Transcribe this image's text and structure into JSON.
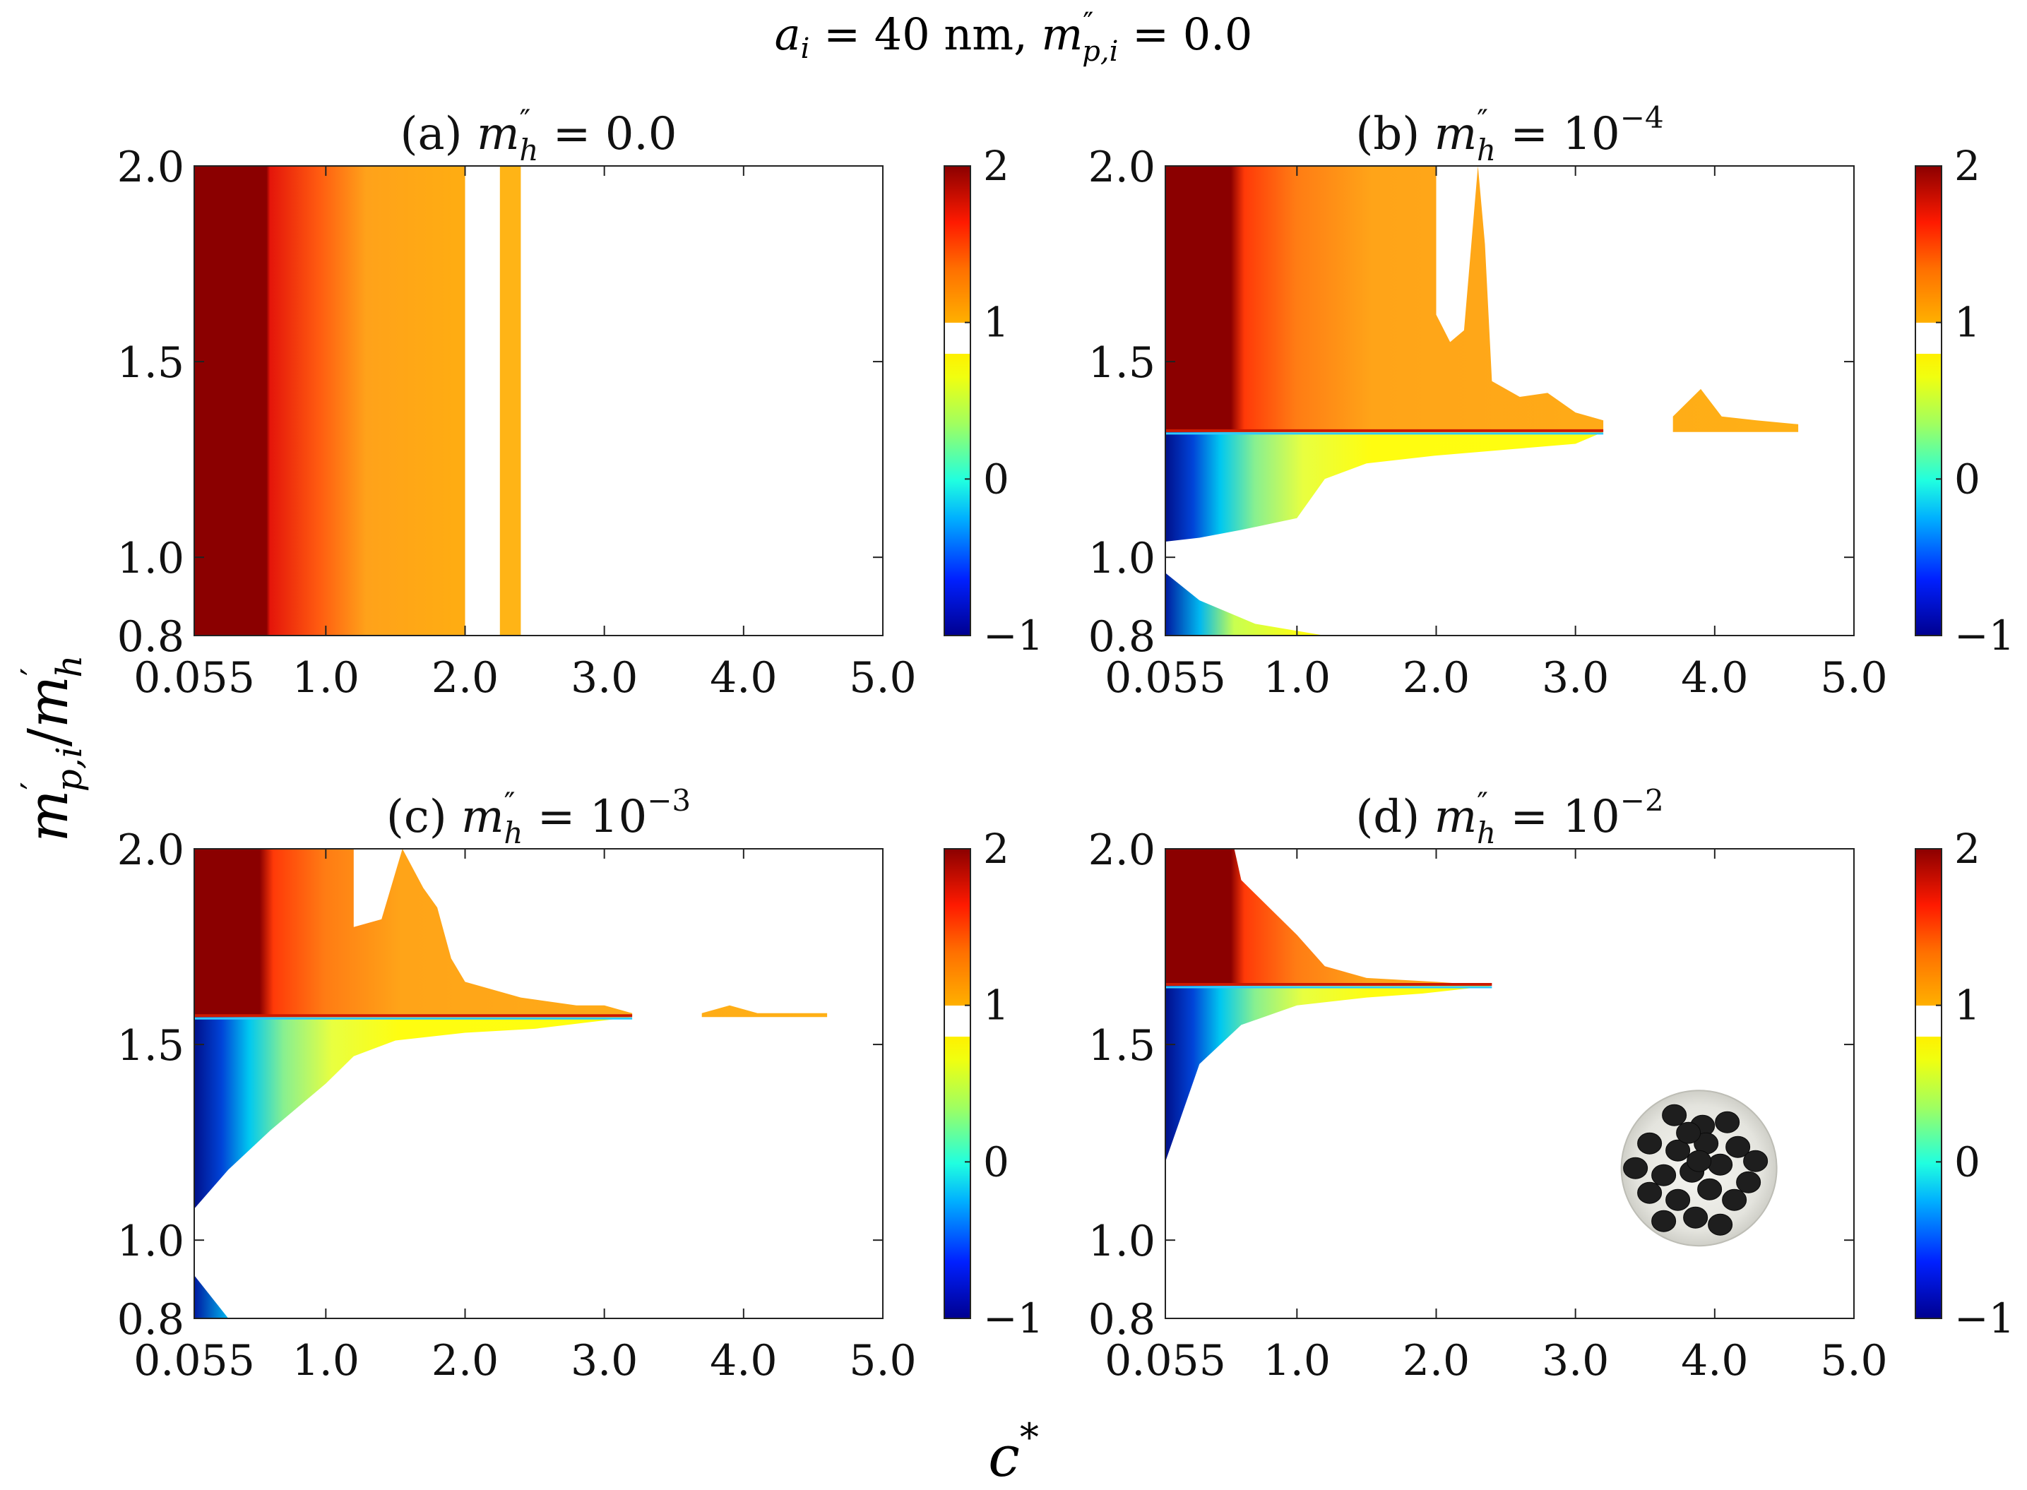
{
  "figure": {
    "suptitle": {
      "a": "a",
      "a_sub": "i",
      "a_rest": " = 40 nm, ",
      "m": "m",
      "m_sup": "″",
      "m_sub": "p,i",
      "m_rest": " = 0.0"
    },
    "xlabel": {
      "c": "c",
      "sup": "*"
    },
    "ylabel": {
      "m1": "m",
      "sup1": "′",
      "sub1": "p,i",
      "slash": "/",
      "m2": "m",
      "sup2": "′",
      "sub2": "h"
    }
  },
  "chart_data": [
    {
      "id": "a",
      "type": "heatmap",
      "title": {
        "prefix": "(a)",
        "m": "m",
        "m_sup": "″",
        "m_sub": "h",
        "eq": "=",
        "value": "0.0",
        "exp": ""
      },
      "xlim": [
        0.055,
        5.0
      ],
      "ylim": [
        0.8,
        2.0
      ],
      "xticks": [
        {
          "v": 0.055,
          "label": "0.055"
        },
        {
          "v": 1.0,
          "label": "1.0"
        },
        {
          "v": 2.0,
          "label": "2.0"
        },
        {
          "v": 3.0,
          "label": "3.0"
        },
        {
          "v": 4.0,
          "label": "4.0"
        },
        {
          "v": 5.0,
          "label": "5.0"
        }
      ],
      "yticks": [
        {
          "v": 0.8,
          "label": "0.8"
        },
        {
          "v": 1.0,
          "label": "1.0"
        },
        {
          "v": 1.5,
          "label": "1.5"
        },
        {
          "v": 2.0,
          "label": "2.0"
        }
      ],
      "colorbar": {
        "range": [
          -1,
          2
        ],
        "gap": [
          0.9,
          1.0
        ],
        "ticks": [
          {
            "v": 2,
            "label": "2"
          },
          {
            "v": 1,
            "label": "1"
          },
          {
            "v": 0,
            "label": "0"
          },
          {
            "v": -1,
            "label": "−1"
          }
        ]
      },
      "threshold": null,
      "upper": [
        [
          0.055,
          2.0
        ],
        [
          2.0,
          2.0
        ],
        [
          2.0,
          0.8
        ],
        [
          0.055,
          0.8
        ]
      ],
      "upper_extra": [
        [
          2.25,
          2.0
        ],
        [
          2.4,
          2.0
        ],
        [
          2.4,
          0.8
        ],
        [
          2.25,
          0.8
        ]
      ],
      "lower": [],
      "lower_extra": [],
      "inset_image": false
    },
    {
      "id": "b",
      "type": "heatmap",
      "title": {
        "prefix": "(b)",
        "m": "m",
        "m_sup": "″",
        "m_sub": "h",
        "eq": "=",
        "value": "10",
        "exp": "−4"
      },
      "xlim": [
        0.055,
        5.0
      ],
      "ylim": [
        0.8,
        2.0
      ],
      "xticks": [
        {
          "v": 0.055,
          "label": "0.055"
        },
        {
          "v": 1.0,
          "label": "1.0"
        },
        {
          "v": 2.0,
          "label": "2.0"
        },
        {
          "v": 3.0,
          "label": "3.0"
        },
        {
          "v": 4.0,
          "label": "4.0"
        },
        {
          "v": 5.0,
          "label": "5.0"
        }
      ],
      "yticks": [
        {
          "v": 0.8,
          "label": "0.8"
        },
        {
          "v": 1.0,
          "label": "1.0"
        },
        {
          "v": 1.5,
          "label": "1.5"
        },
        {
          "v": 2.0,
          "label": "2.0"
        }
      ],
      "colorbar": {
        "range": [
          -1,
          2
        ],
        "gap": [
          0.9,
          1.0
        ],
        "ticks": [
          {
            "v": 2,
            "label": "2"
          },
          {
            "v": 1,
            "label": "1"
          },
          {
            "v": 0,
            "label": "0"
          },
          {
            "v": -1,
            "label": "−1"
          }
        ]
      },
      "threshold": 1.32,
      "upper": [
        [
          0.055,
          2.0
        ],
        [
          2.0,
          2.0
        ],
        [
          2.0,
          1.62
        ],
        [
          2.1,
          1.55
        ],
        [
          2.2,
          1.58
        ],
        [
          2.3,
          2.0
        ],
        [
          2.35,
          1.8
        ],
        [
          2.4,
          1.45
        ],
        [
          2.6,
          1.41
        ],
        [
          2.8,
          1.42
        ],
        [
          3.0,
          1.37
        ],
        [
          3.2,
          1.35
        ],
        [
          3.2,
          1.32
        ],
        [
          0.055,
          1.32
        ]
      ],
      "upper_extra": [
        [
          3.7,
          1.36
        ],
        [
          3.9,
          1.43
        ],
        [
          4.05,
          1.36
        ],
        [
          4.3,
          1.35
        ],
        [
          4.6,
          1.34
        ],
        [
          4.6,
          1.32
        ],
        [
          3.7,
          1.32
        ]
      ],
      "lower": [
        [
          0.055,
          1.32
        ],
        [
          3.2,
          1.32
        ],
        [
          3.0,
          1.29
        ],
        [
          2.0,
          1.26
        ],
        [
          1.5,
          1.24
        ],
        [
          1.2,
          1.2
        ],
        [
          1.0,
          1.1
        ],
        [
          0.6,
          1.07
        ],
        [
          0.3,
          1.05
        ],
        [
          0.055,
          1.04
        ]
      ],
      "lower_extra": [
        [
          0.055,
          0.96
        ],
        [
          0.3,
          0.89
        ],
        [
          0.7,
          0.83
        ],
        [
          1.2,
          0.8
        ],
        [
          0.055,
          0.8
        ]
      ],
      "inset_image": false
    },
    {
      "id": "c",
      "type": "heatmap",
      "title": {
        "prefix": "(c)",
        "m": "m",
        "m_sup": "″",
        "m_sub": "h",
        "eq": "=",
        "value": "10",
        "exp": "−3"
      },
      "xlim": [
        0.055,
        5.0
      ],
      "ylim": [
        0.8,
        2.0
      ],
      "xticks": [
        {
          "v": 0.055,
          "label": "0.055"
        },
        {
          "v": 1.0,
          "label": "1.0"
        },
        {
          "v": 2.0,
          "label": "2.0"
        },
        {
          "v": 3.0,
          "label": "3.0"
        },
        {
          "v": 4.0,
          "label": "4.0"
        },
        {
          "v": 5.0,
          "label": "5.0"
        }
      ],
      "yticks": [
        {
          "v": 0.8,
          "label": "0.8"
        },
        {
          "v": 1.0,
          "label": "1.0"
        },
        {
          "v": 1.5,
          "label": "1.5"
        },
        {
          "v": 2.0,
          "label": "2.0"
        }
      ],
      "colorbar": {
        "range": [
          -1,
          2
        ],
        "gap": [
          0.9,
          1.0
        ],
        "ticks": [
          {
            "v": 2,
            "label": "2"
          },
          {
            "v": 1,
            "label": "1"
          },
          {
            "v": 0,
            "label": "0"
          },
          {
            "v": -1,
            "label": "−1"
          }
        ]
      },
      "threshold": 1.57,
      "upper": [
        [
          0.055,
          2.0
        ],
        [
          1.2,
          2.0
        ],
        [
          1.2,
          1.8
        ],
        [
          1.4,
          1.82
        ],
        [
          1.55,
          2.0
        ],
        [
          1.7,
          1.9
        ],
        [
          1.8,
          1.85
        ],
        [
          1.9,
          1.72
        ],
        [
          2.0,
          1.66
        ],
        [
          2.4,
          1.62
        ],
        [
          2.8,
          1.6
        ],
        [
          3.0,
          1.6
        ],
        [
          3.2,
          1.58
        ],
        [
          3.2,
          1.57
        ],
        [
          0.055,
          1.57
        ]
      ],
      "upper_extra": [
        [
          3.7,
          1.58
        ],
        [
          3.9,
          1.6
        ],
        [
          4.1,
          1.58
        ],
        [
          4.6,
          1.58
        ],
        [
          4.6,
          1.57
        ],
        [
          3.7,
          1.57
        ]
      ],
      "lower": [
        [
          0.055,
          1.57
        ],
        [
          3.2,
          1.57
        ],
        [
          2.5,
          1.54
        ],
        [
          2.0,
          1.53
        ],
        [
          1.5,
          1.51
        ],
        [
          1.2,
          1.47
        ],
        [
          1.0,
          1.4
        ],
        [
          0.6,
          1.28
        ],
        [
          0.3,
          1.18
        ],
        [
          0.055,
          1.08
        ]
      ],
      "lower_extra": [
        [
          0.055,
          0.91
        ],
        [
          0.3,
          0.8
        ],
        [
          0.055,
          0.8
        ]
      ],
      "inset_image": false
    },
    {
      "id": "d",
      "type": "heatmap",
      "title": {
        "prefix": "(d)",
        "m": "m",
        "m_sup": "″",
        "m_sub": "h",
        "eq": "=",
        "value": "10",
        "exp": "−2"
      },
      "xlim": [
        0.055,
        5.0
      ],
      "ylim": [
        0.8,
        2.0
      ],
      "xticks": [
        {
          "v": 0.055,
          "label": "0.055"
        },
        {
          "v": 1.0,
          "label": "1.0"
        },
        {
          "v": 2.0,
          "label": "2.0"
        },
        {
          "v": 3.0,
          "label": "3.0"
        },
        {
          "v": 4.0,
          "label": "4.0"
        },
        {
          "v": 5.0,
          "label": "5.0"
        }
      ],
      "yticks": [
        {
          "v": 0.8,
          "label": "0.8"
        },
        {
          "v": 1.0,
          "label": "1.0"
        },
        {
          "v": 1.5,
          "label": "1.5"
        },
        {
          "v": 2.0,
          "label": "2.0"
        }
      ],
      "colorbar": {
        "range": [
          -1,
          2
        ],
        "gap": [
          0.9,
          1.0
        ],
        "ticks": [
          {
            "v": 2,
            "label": "2"
          },
          {
            "v": 1,
            "label": "1"
          },
          {
            "v": 0,
            "label": "0"
          },
          {
            "v": -1,
            "label": "−1"
          }
        ]
      },
      "threshold": 1.65,
      "upper": [
        [
          0.055,
          2.0
        ],
        [
          0.55,
          2.0
        ],
        [
          0.6,
          1.92
        ],
        [
          0.8,
          1.85
        ],
        [
          1.0,
          1.78
        ],
        [
          1.2,
          1.7
        ],
        [
          1.5,
          1.67
        ],
        [
          2.0,
          1.66
        ],
        [
          2.4,
          1.65
        ],
        [
          0.055,
          1.65
        ]
      ],
      "upper_extra": [],
      "lower": [
        [
          0.055,
          1.65
        ],
        [
          2.4,
          1.65
        ],
        [
          1.9,
          1.63
        ],
        [
          1.5,
          1.62
        ],
        [
          1.0,
          1.6
        ],
        [
          0.6,
          1.55
        ],
        [
          0.3,
          1.45
        ],
        [
          0.055,
          1.2
        ]
      ],
      "lower_extra": [],
      "inset_image": true
    }
  ]
}
